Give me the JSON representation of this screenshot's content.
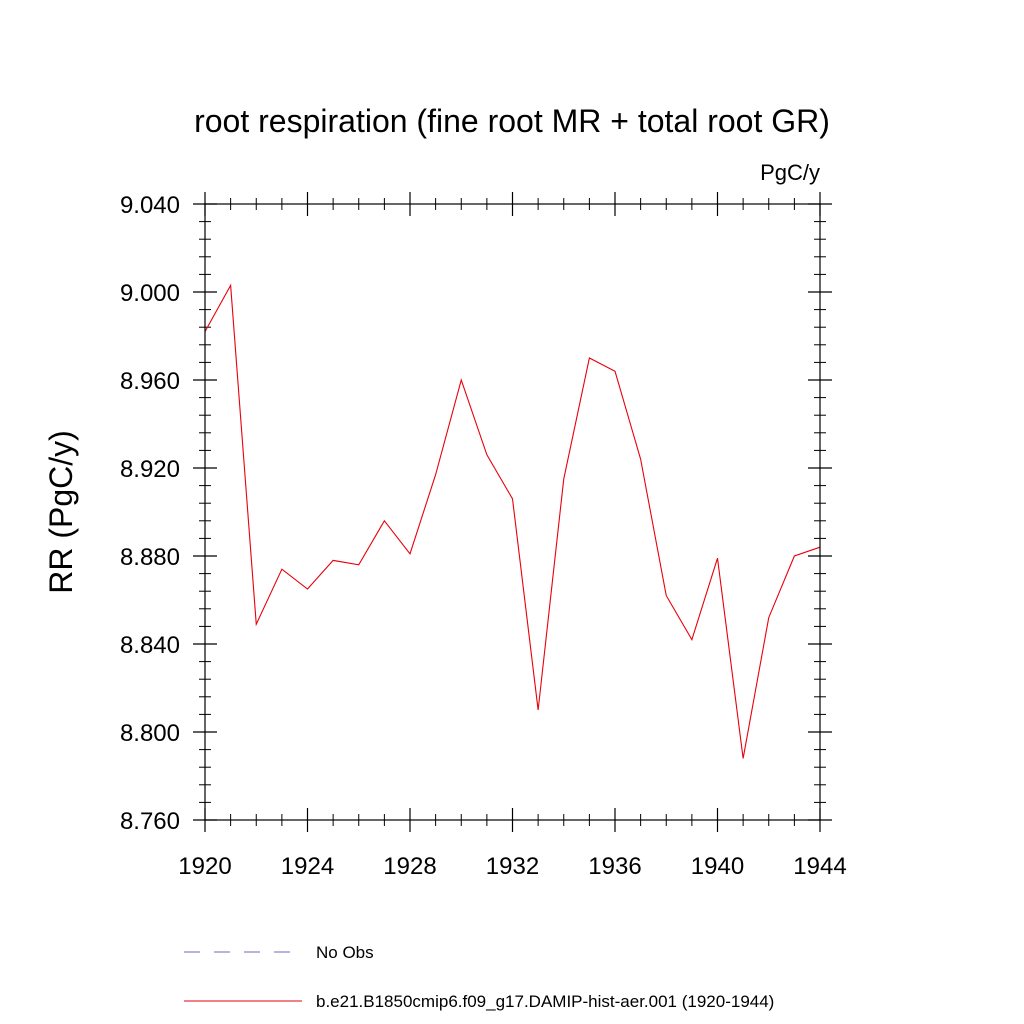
{
  "chart_data": {
    "type": "line",
    "title": "root respiration (fine root MR + total root GR)",
    "units_label": "PgC/y",
    "ylabel": "RR  (PgC/y)",
    "xlabel": "",
    "xlim": [
      1920,
      1944
    ],
    "ylim": [
      8.76,
      9.04
    ],
    "x_ticks": [
      1920,
      1924,
      1928,
      1932,
      1936,
      1940,
      1944
    ],
    "x_tick_labels": [
      "1920",
      "1924",
      "1928",
      "1932",
      "1936",
      "1940",
      "1944"
    ],
    "y_ticks": [
      8.76,
      8.8,
      8.84,
      8.88,
      8.92,
      8.96,
      9.0,
      9.04
    ],
    "y_tick_labels": [
      "8.760",
      "8.800",
      "8.840",
      "8.880",
      "8.920",
      "8.960",
      "9.000",
      "9.040"
    ],
    "x_minor_step": 1,
    "y_minor_step": 0.008,
    "grid": false,
    "legend_position": "bottom",
    "series": [
      {
        "name": "No Obs",
        "color": "#6a6ab8",
        "style": "dashed",
        "x": [],
        "values": []
      },
      {
        "name": "b.e21.B1850cmip6.f09_g17.DAMIP-hist-aer.001 (1920-1944)",
        "color": "#e8000b",
        "style": "solid",
        "x": [
          1920,
          1921,
          1922,
          1923,
          1924,
          1925,
          1926,
          1927,
          1928,
          1929,
          1930,
          1931,
          1932,
          1933,
          1934,
          1935,
          1936,
          1937,
          1938,
          1939,
          1940,
          1941,
          1942,
          1943,
          1944
        ],
        "values": [
          8.982,
          9.003,
          8.849,
          8.874,
          8.865,
          8.878,
          8.876,
          8.896,
          8.881,
          8.917,
          8.96,
          8.926,
          8.906,
          8.81,
          8.915,
          8.97,
          8.964,
          8.924,
          8.862,
          8.842,
          8.879,
          8.788,
          8.852,
          8.88,
          8.884
        ]
      }
    ]
  }
}
